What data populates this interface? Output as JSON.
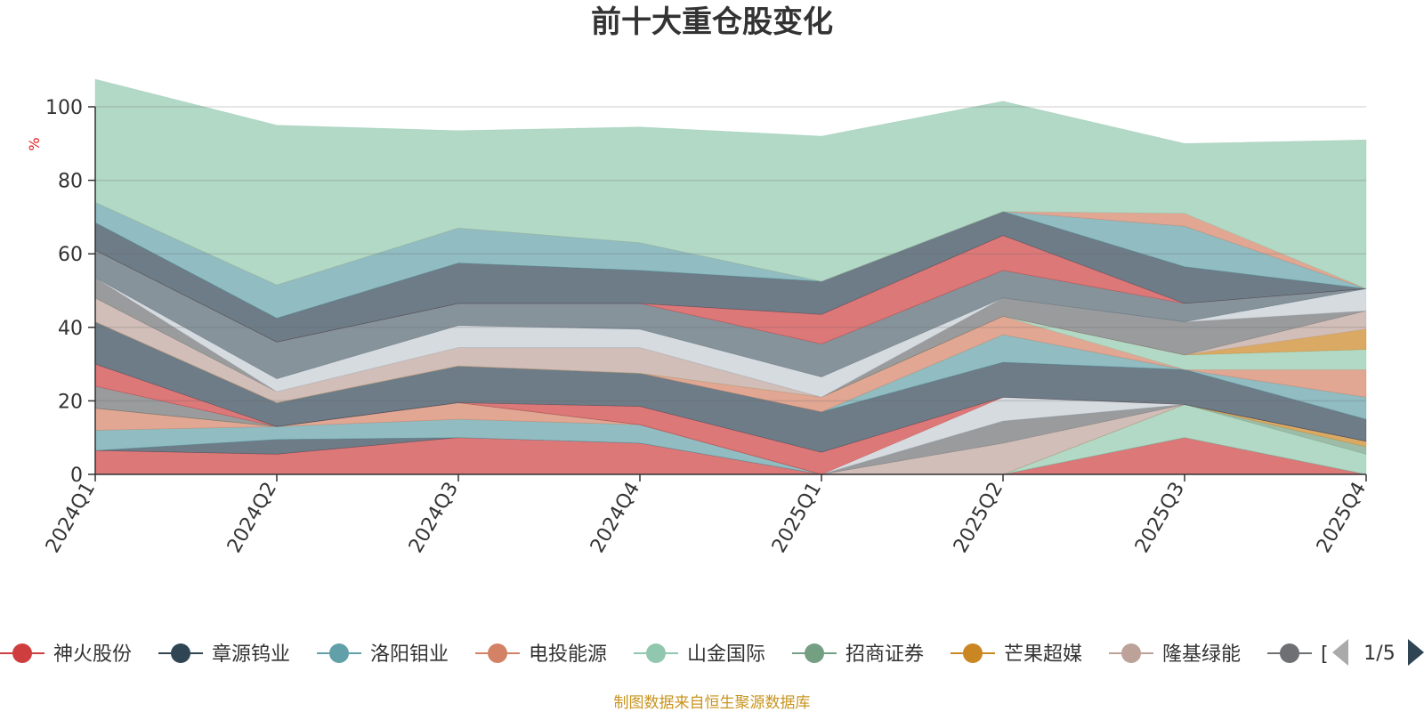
{
  "chart_data": {
    "type": "area",
    "stacked": true,
    "title": "前十大重仓股变化",
    "ylabel": "%",
    "ylim": [
      0,
      100
    ],
    "yticks": [
      0,
      20,
      40,
      60,
      80,
      100
    ],
    "grid": true,
    "legend_position": "bottom",
    "x": [
      "2024Q1",
      "2024Q2",
      "2024Q3",
      "2024Q4",
      "2025Q1",
      "2025Q2",
      "2025Q3",
      "2025Q4"
    ],
    "series": [
      {
        "name": "神火股份",
        "color": "#cf3e3e",
        "values": [
          6.5,
          5.5,
          10.0,
          8.5,
          0,
          0,
          10.0,
          0
        ]
      },
      {
        "name": "章源钨业",
        "color": "#2f4554",
        "values": [
          0,
          4.0,
          0,
          0,
          0,
          0,
          0,
          0
        ]
      },
      {
        "name": "洛阳钼业",
        "color": "#61a0a8",
        "values": [
          5.5,
          3.5,
          5.0,
          5.0,
          0,
          0,
          0,
          0
        ]
      },
      {
        "name": "电投能源",
        "color": "#d48265",
        "values": [
          6.0,
          0,
          4.5,
          0,
          0,
          0,
          0,
          0
        ]
      },
      {
        "name": "山金国际",
        "color": "#91c7ae",
        "values": [
          0,
          0,
          0,
          0,
          0,
          0,
          9.0,
          5.5
        ]
      },
      {
        "name": "招商证券",
        "color": "#749f83",
        "values": [
          0,
          0,
          0,
          0,
          0,
          0,
          0,
          2.0
        ]
      },
      {
        "name": "芒果超媒",
        "color": "#ca8622",
        "values": [
          0,
          0,
          0,
          0,
          0,
          0,
          0,
          1.5
        ]
      },
      {
        "name": "隆基绿能",
        "color": "#bda29a",
        "values": [
          0,
          0,
          0,
          0,
          0,
          8.5,
          0,
          0
        ]
      },
      {
        "name": "[",
        "color": "#6e7074",
        "values": [
          6.0,
          0,
          0,
          0,
          0,
          6.0,
          0,
          0
        ]
      },
      {
        "name": "",
        "color": "#546570",
        "values": [
          0,
          0,
          0,
          0,
          0,
          0,
          0,
          0
        ]
      },
      {
        "name": "",
        "color": "#c4ccd3",
        "values": [
          0,
          0,
          0,
          0,
          0,
          6.5,
          0,
          0
        ]
      },
      {
        "name": "",
        "color": "#cf3e3e",
        "values": [
          6.0,
          0,
          0,
          5.0,
          6.0,
          0,
          0,
          0
        ]
      },
      {
        "name": "",
        "color": "#2f4554",
        "values": [
          11.5,
          6.5,
          10.0,
          9.0,
          11.0,
          9.5,
          9.5,
          6.0
        ]
      },
      {
        "name": "",
        "color": "#61a0a8",
        "values": [
          0,
          0,
          0,
          0,
          0,
          7.5,
          0,
          6.0
        ]
      },
      {
        "name": "",
        "color": "#d48265",
        "values": [
          0,
          0,
          0,
          0,
          4.0,
          5.0,
          0,
          7.5
        ]
      },
      {
        "name": "",
        "color": "#91c7ae",
        "values": [
          0,
          0,
          0,
          0,
          0,
          0,
          4.0,
          5.5
        ]
      },
      {
        "name": "",
        "color": "#ca8622",
        "values": [
          0,
          0,
          0,
          0,
          0,
          0,
          0,
          5.5
        ]
      },
      {
        "name": "",
        "color": "#bda29a",
        "values": [
          6.5,
          3.0,
          5.0,
          7.0,
          0,
          0,
          0,
          5.0
        ]
      },
      {
        "name": "",
        "color": "#6e7074",
        "values": [
          5.5,
          0,
          0,
          0,
          0,
          5.0,
          9.0,
          0
        ]
      },
      {
        "name": "",
        "color": "#c4ccd3",
        "values": [
          0,
          3.5,
          6.0,
          5.0,
          5.5,
          0,
          0,
          6.0
        ]
      },
      {
        "name": "",
        "color": "#546570",
        "values": [
          7.5,
          10.0,
          6.0,
          7.0,
          9.0,
          7.5,
          5.0,
          0
        ]
      },
      {
        "name": "",
        "color": "#cf3e3e",
        "values": [
          0,
          0,
          0,
          0,
          8.0,
          9.5,
          0,
          0
        ]
      },
      {
        "name": "",
        "color": "#2f4554",
        "values": [
          7.5,
          6.5,
          11.0,
          9.0,
          9.0,
          6.5,
          10.0,
          0
        ]
      },
      {
        "name": "",
        "color": "#61a0a8",
        "values": [
          5.5,
          9.0,
          9.5,
          7.5,
          0,
          0,
          11.0,
          0
        ]
      },
      {
        "name": "",
        "color": "#d48265",
        "values": [
          0,
          0,
          0,
          0,
          0,
          0,
          3.5,
          0
        ]
      },
      {
        "name": "",
        "color": "#91c7ae",
        "values": [
          33.5,
          43.5,
          26.5,
          31.5,
          39.5,
          30.0,
          19.0,
          40.5
        ]
      }
    ]
  },
  "legend": {
    "items": [
      {
        "name": "神火股份",
        "color": "#cf3e3e"
      },
      {
        "name": "章源钨业",
        "color": "#2f4554"
      },
      {
        "name": "洛阳钼业",
        "color": "#61a0a8"
      },
      {
        "name": "电投能源",
        "color": "#d48265"
      },
      {
        "name": "山金国际",
        "color": "#91c7ae"
      },
      {
        "name": "招商证券",
        "color": "#749f83"
      },
      {
        "name": "芒果超媒",
        "color": "#ca8622"
      },
      {
        "name": "隆基绿能",
        "color": "#bda29a"
      },
      {
        "name": "[",
        "color": "#6e7074"
      }
    ],
    "page": "1/5"
  },
  "source_note": "制图数据来自恒生聚源数据库"
}
